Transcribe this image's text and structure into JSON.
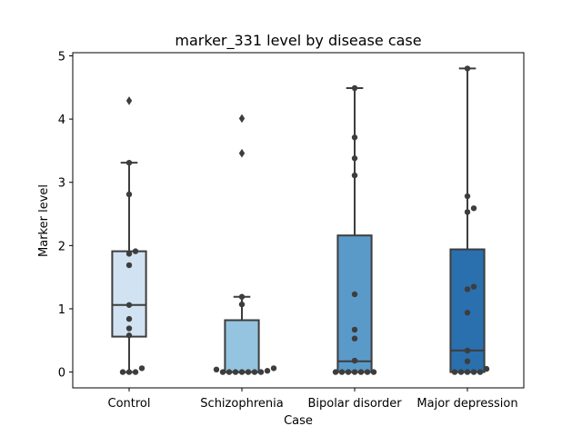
{
  "chart_data": {
    "type": "box",
    "title": "marker_331 level by disease case",
    "xlabel": "Case",
    "ylabel": "Marker level",
    "ylim": [
      -0.25,
      5.05
    ],
    "yticks": [
      "0",
      "1",
      "2",
      "3",
      "4",
      "5"
    ],
    "grid": false,
    "categories": [
      "Control",
      "Schizophrenia",
      "Bipolar disorder",
      "Major depression"
    ],
    "colors": [
      "#d1e2f2",
      "#94c4df",
      "#5a9ac9",
      "#2a6fae"
    ],
    "boxes": [
      {
        "q1": 0.56,
        "median": 1.06,
        "q3": 1.91,
        "whisker_low": 0.0,
        "whisker_high": 3.31,
        "fliers": [
          4.29
        ]
      },
      {
        "q1": 0.0,
        "median": 0.0,
        "q3": 0.82,
        "whisker_low": 0.0,
        "whisker_high": 1.19,
        "fliers": [
          4.01,
          3.46
        ]
      },
      {
        "q1": 0.0,
        "median": 0.17,
        "q3": 2.16,
        "whisker_low": 0.0,
        "whisker_high": 4.49,
        "fliers": []
      },
      {
        "q1": 0.0,
        "median": 0.34,
        "q3": 1.94,
        "whisker_low": 0.0,
        "whisker_high": 4.8,
        "fliers": []
      }
    ],
    "points": [
      [
        0.0,
        0.0,
        0.0,
        0.06,
        0.58,
        0.69,
        0.84,
        1.06,
        1.69,
        1.87,
        1.91,
        2.81,
        3.31
      ],
      [
        0.02,
        0.0,
        0.0,
        0.0,
        0.0,
        0.0,
        0.0,
        0.0,
        0.04,
        0.06,
        1.07,
        1.19
      ],
      [
        0.0,
        0.0,
        0.0,
        0.0,
        0.0,
        0.0,
        0.0,
        0.18,
        0.53,
        0.67,
        1.23,
        3.11,
        3.38,
        3.71,
        4.49
      ],
      [
        0.0,
        0.0,
        0.0,
        0.0,
        0.0,
        0.05,
        0.17,
        0.34,
        0.94,
        1.31,
        1.35,
        2.53,
        2.59,
        2.78,
        4.8
      ]
    ]
  }
}
